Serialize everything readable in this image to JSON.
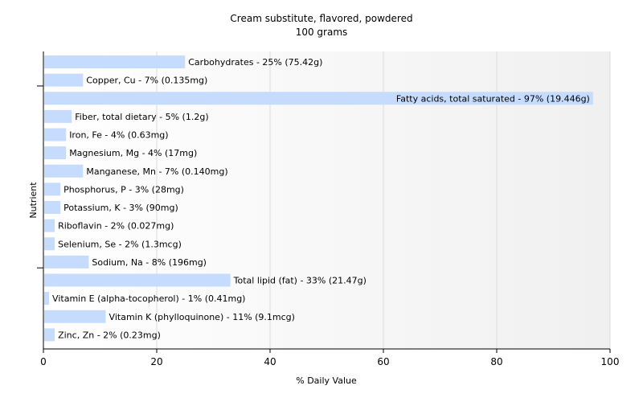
{
  "chart_data": {
    "type": "bar",
    "orientation": "horizontal",
    "title": "Cream substitute, flavored, powdered",
    "subtitle": "100 grams",
    "xlabel": "% Daily Value",
    "ylabel": "Nutrient",
    "xlim": [
      0,
      100
    ],
    "xticks": [
      0,
      20,
      40,
      60,
      80,
      100
    ],
    "grid": true,
    "bar_color": "#c6dcff",
    "categories": [
      "Carbohydrates",
      "Copper, Cu",
      "Fatty acids, total saturated",
      "Fiber, total dietary",
      "Iron, Fe",
      "Magnesium, Mg",
      "Manganese, Mn",
      "Phosphorus, P",
      "Potassium, K",
      "Riboflavin",
      "Selenium, Se",
      "Sodium, Na",
      "Total lipid (fat)",
      "Vitamin E (alpha-tocopherol)",
      "Vitamin K (phylloquinone)",
      "Zinc, Zn"
    ],
    "values": [
      25,
      7,
      97,
      5,
      4,
      4,
      7,
      3,
      3,
      2,
      2,
      8,
      33,
      1,
      11,
      2
    ],
    "labels": [
      "Carbohydrates - 25% (75.42g)",
      "Copper, Cu - 7% (0.135mg)",
      "Fatty acids, total saturated - 97% (19.446g)",
      "Fiber, total dietary - 5% (1.2g)",
      "Iron, Fe - 4% (0.63mg)",
      "Magnesium, Mg - 4% (17mg)",
      "Manganese, Mn - 7% (0.140mg)",
      "Phosphorus, P - 3% (28mg)",
      "Potassium, K - 3% (90mg)",
      "Riboflavin - 2% (0.027mg)",
      "Selenium, Se - 2% (1.3mcg)",
      "Sodium, Na - 8% (196mg)",
      "Total lipid (fat) - 33% (21.47g)",
      "Vitamin E (alpha-tocopherol) - 1% (0.41mg)",
      "Vitamin K (phylloquinone) - 11% (9.1mcg)",
      "Zinc, Zn - 2% (0.23mg)"
    ]
  }
}
